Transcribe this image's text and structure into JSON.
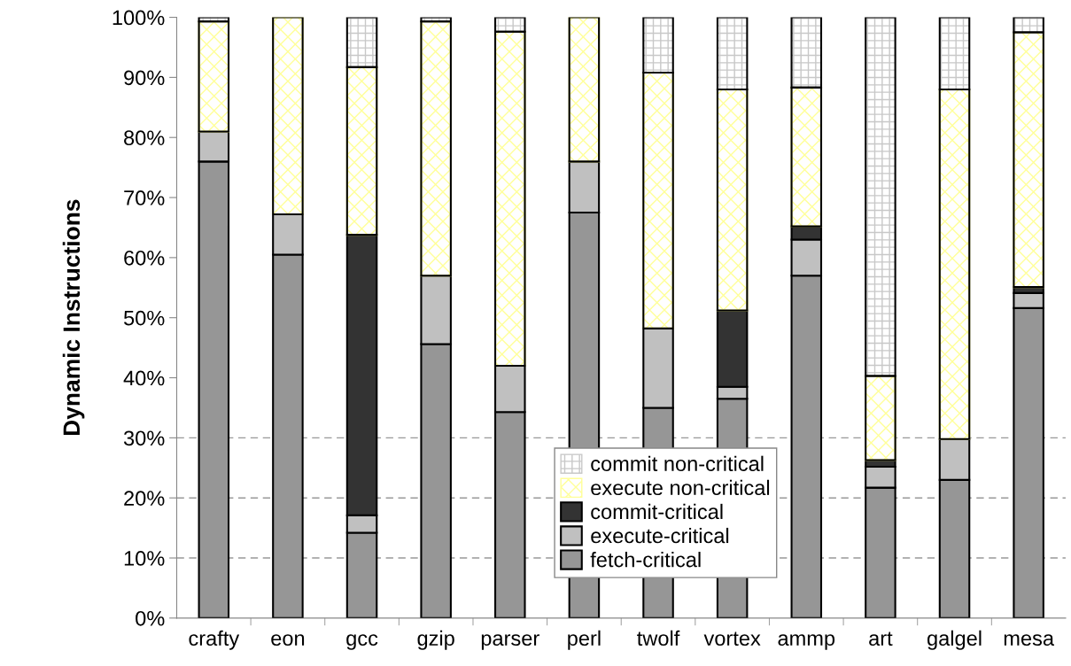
{
  "chart_data": {
    "type": "bar",
    "stacked": true,
    "ylabel": "Dynamic Instructions",
    "categories": [
      "crafty",
      "eon",
      "gcc",
      "gzip",
      "parser",
      "perl",
      "twolf",
      "vortex",
      "ammp",
      "art",
      "galgel",
      "mesa"
    ],
    "series": [
      {
        "name": "fetch-critical",
        "color": "#969696",
        "values": [
          76,
          60.5,
          14.2,
          45.6,
          34.3,
          67.5,
          35,
          36.5,
          57,
          21.7,
          23,
          51.6
        ]
      },
      {
        "name": "execute-critical",
        "color": "#c0c0c0",
        "values": [
          5,
          6.7,
          2.9,
          11.4,
          7.7,
          8.5,
          13.2,
          2,
          6,
          3.5,
          6.8,
          2.5
        ]
      },
      {
        "name": "commit-critical",
        "color": "#333333",
        "values": [
          0,
          0,
          46.7,
          0,
          0,
          0,
          0,
          12.7,
          2.2,
          1.1,
          0,
          1.0
        ]
      },
      {
        "name": "execute non-critical",
        "color": "#ffff99",
        "values": [
          18.3,
          32.8,
          27.9,
          42.3,
          55.6,
          24,
          42.6,
          36.8,
          23.1,
          14,
          58.2,
          42.4
        ]
      },
      {
        "name": "commit non-critical",
        "color": "#c8c8c8",
        "values": [
          0.7,
          0,
          8.3,
          0.7,
          2.4,
          0,
          9.2,
          12,
          11.7,
          59.7,
          12,
          2.5
        ]
      }
    ],
    "ylim": [
      0,
      100
    ],
    "yticks": [
      {
        "value": 0,
        "label": "0%"
      },
      {
        "value": 10,
        "label": "10%"
      },
      {
        "value": 20,
        "label": "20%"
      },
      {
        "value": 30,
        "label": "30%"
      },
      {
        "value": 40,
        "label": "40%"
      },
      {
        "value": 50,
        "label": "50%"
      },
      {
        "value": 60,
        "label": "60%"
      },
      {
        "value": 70,
        "label": "70%"
      },
      {
        "value": 80,
        "label": "80%"
      },
      {
        "value": 90,
        "label": "90%"
      },
      {
        "value": 100,
        "label": "100%"
      }
    ],
    "ref_lines": [
      {
        "axis": "y",
        "value": 10,
        "color": "#999999",
        "line_style": "dashed"
      },
      {
        "axis": "y",
        "value": 20,
        "color": "#999999",
        "line_style": "dashed"
      },
      {
        "axis": "y",
        "value": 30,
        "color": "#999999",
        "line_style": "dashed"
      }
    ],
    "legend": "bottom"
  }
}
